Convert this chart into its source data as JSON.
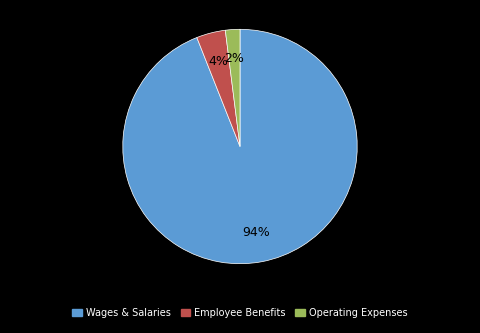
{
  "labels": [
    "Wages & Salaries",
    "Employee Benefits",
    "Operating Expenses"
  ],
  "values": [
    94,
    4,
    2
  ],
  "colors": [
    "#5b9bd5",
    "#c0504d",
    "#9bbb59"
  ],
  "legend_labels": [
    "Wages & Salaries",
    "Employee Benefits",
    "Operating Expenses"
  ],
  "startangle": 90,
  "chart_bg_color": "#f2f2f2",
  "legend_bg_color": "#000000",
  "pct_text_color": "#000000",
  "legend_text_color": "#ffffff",
  "fontsize": 9,
  "legend_fontsize": 7
}
